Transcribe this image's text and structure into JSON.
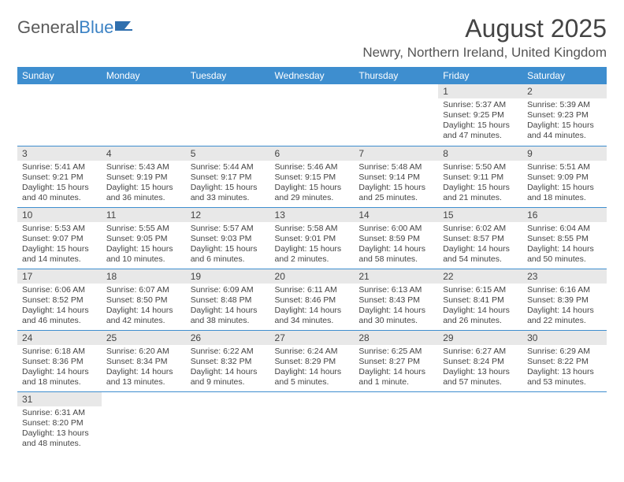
{
  "logo": {
    "general": "General",
    "blue": "Blue"
  },
  "title": "August 2025",
  "location": "Newry, Northern Ireland, United Kingdom",
  "headers": [
    "Sunday",
    "Monday",
    "Tuesday",
    "Wednesday",
    "Thursday",
    "Friday",
    "Saturday"
  ],
  "colors": {
    "header_bg": "#3e8ecf",
    "header_text": "#ffffff",
    "daynum_bg": "#e8e8e8",
    "border": "#3e8ecf",
    "logo_gray": "#5a5a5a",
    "logo_blue": "#3b82c4"
  },
  "weeks": [
    [
      {
        "empty": true
      },
      {
        "empty": true
      },
      {
        "empty": true
      },
      {
        "empty": true
      },
      {
        "empty": true
      },
      {
        "n": "1",
        "sr": "Sunrise: 5:37 AM",
        "ss": "Sunset: 9:25 PM",
        "dl": "Daylight: 15 hours and 47 minutes."
      },
      {
        "n": "2",
        "sr": "Sunrise: 5:39 AM",
        "ss": "Sunset: 9:23 PM",
        "dl": "Daylight: 15 hours and 44 minutes."
      }
    ],
    [
      {
        "n": "3",
        "sr": "Sunrise: 5:41 AM",
        "ss": "Sunset: 9:21 PM",
        "dl": "Daylight: 15 hours and 40 minutes."
      },
      {
        "n": "4",
        "sr": "Sunrise: 5:43 AM",
        "ss": "Sunset: 9:19 PM",
        "dl": "Daylight: 15 hours and 36 minutes."
      },
      {
        "n": "5",
        "sr": "Sunrise: 5:44 AM",
        "ss": "Sunset: 9:17 PM",
        "dl": "Daylight: 15 hours and 33 minutes."
      },
      {
        "n": "6",
        "sr": "Sunrise: 5:46 AM",
        "ss": "Sunset: 9:15 PM",
        "dl": "Daylight: 15 hours and 29 minutes."
      },
      {
        "n": "7",
        "sr": "Sunrise: 5:48 AM",
        "ss": "Sunset: 9:14 PM",
        "dl": "Daylight: 15 hours and 25 minutes."
      },
      {
        "n": "8",
        "sr": "Sunrise: 5:50 AM",
        "ss": "Sunset: 9:11 PM",
        "dl": "Daylight: 15 hours and 21 minutes."
      },
      {
        "n": "9",
        "sr": "Sunrise: 5:51 AM",
        "ss": "Sunset: 9:09 PM",
        "dl": "Daylight: 15 hours and 18 minutes."
      }
    ],
    [
      {
        "n": "10",
        "sr": "Sunrise: 5:53 AM",
        "ss": "Sunset: 9:07 PM",
        "dl": "Daylight: 15 hours and 14 minutes."
      },
      {
        "n": "11",
        "sr": "Sunrise: 5:55 AM",
        "ss": "Sunset: 9:05 PM",
        "dl": "Daylight: 15 hours and 10 minutes."
      },
      {
        "n": "12",
        "sr": "Sunrise: 5:57 AM",
        "ss": "Sunset: 9:03 PM",
        "dl": "Daylight: 15 hours and 6 minutes."
      },
      {
        "n": "13",
        "sr": "Sunrise: 5:58 AM",
        "ss": "Sunset: 9:01 PM",
        "dl": "Daylight: 15 hours and 2 minutes."
      },
      {
        "n": "14",
        "sr": "Sunrise: 6:00 AM",
        "ss": "Sunset: 8:59 PM",
        "dl": "Daylight: 14 hours and 58 minutes."
      },
      {
        "n": "15",
        "sr": "Sunrise: 6:02 AM",
        "ss": "Sunset: 8:57 PM",
        "dl": "Daylight: 14 hours and 54 minutes."
      },
      {
        "n": "16",
        "sr": "Sunrise: 6:04 AM",
        "ss": "Sunset: 8:55 PM",
        "dl": "Daylight: 14 hours and 50 minutes."
      }
    ],
    [
      {
        "n": "17",
        "sr": "Sunrise: 6:06 AM",
        "ss": "Sunset: 8:52 PM",
        "dl": "Daylight: 14 hours and 46 minutes."
      },
      {
        "n": "18",
        "sr": "Sunrise: 6:07 AM",
        "ss": "Sunset: 8:50 PM",
        "dl": "Daylight: 14 hours and 42 minutes."
      },
      {
        "n": "19",
        "sr": "Sunrise: 6:09 AM",
        "ss": "Sunset: 8:48 PM",
        "dl": "Daylight: 14 hours and 38 minutes."
      },
      {
        "n": "20",
        "sr": "Sunrise: 6:11 AM",
        "ss": "Sunset: 8:46 PM",
        "dl": "Daylight: 14 hours and 34 minutes."
      },
      {
        "n": "21",
        "sr": "Sunrise: 6:13 AM",
        "ss": "Sunset: 8:43 PM",
        "dl": "Daylight: 14 hours and 30 minutes."
      },
      {
        "n": "22",
        "sr": "Sunrise: 6:15 AM",
        "ss": "Sunset: 8:41 PM",
        "dl": "Daylight: 14 hours and 26 minutes."
      },
      {
        "n": "23",
        "sr": "Sunrise: 6:16 AM",
        "ss": "Sunset: 8:39 PM",
        "dl": "Daylight: 14 hours and 22 minutes."
      }
    ],
    [
      {
        "n": "24",
        "sr": "Sunrise: 6:18 AM",
        "ss": "Sunset: 8:36 PM",
        "dl": "Daylight: 14 hours and 18 minutes."
      },
      {
        "n": "25",
        "sr": "Sunrise: 6:20 AM",
        "ss": "Sunset: 8:34 PM",
        "dl": "Daylight: 14 hours and 13 minutes."
      },
      {
        "n": "26",
        "sr": "Sunrise: 6:22 AM",
        "ss": "Sunset: 8:32 PM",
        "dl": "Daylight: 14 hours and 9 minutes."
      },
      {
        "n": "27",
        "sr": "Sunrise: 6:24 AM",
        "ss": "Sunset: 8:29 PM",
        "dl": "Daylight: 14 hours and 5 minutes."
      },
      {
        "n": "28",
        "sr": "Sunrise: 6:25 AM",
        "ss": "Sunset: 8:27 PM",
        "dl": "Daylight: 14 hours and 1 minute."
      },
      {
        "n": "29",
        "sr": "Sunrise: 6:27 AM",
        "ss": "Sunset: 8:24 PM",
        "dl": "Daylight: 13 hours and 57 minutes."
      },
      {
        "n": "30",
        "sr": "Sunrise: 6:29 AM",
        "ss": "Sunset: 8:22 PM",
        "dl": "Daylight: 13 hours and 53 minutes."
      }
    ],
    [
      {
        "n": "31",
        "sr": "Sunrise: 6:31 AM",
        "ss": "Sunset: 8:20 PM",
        "dl": "Daylight: 13 hours and 48 minutes."
      },
      {
        "empty": true
      },
      {
        "empty": true
      },
      {
        "empty": true
      },
      {
        "empty": true
      },
      {
        "empty": true
      },
      {
        "empty": true
      }
    ]
  ]
}
